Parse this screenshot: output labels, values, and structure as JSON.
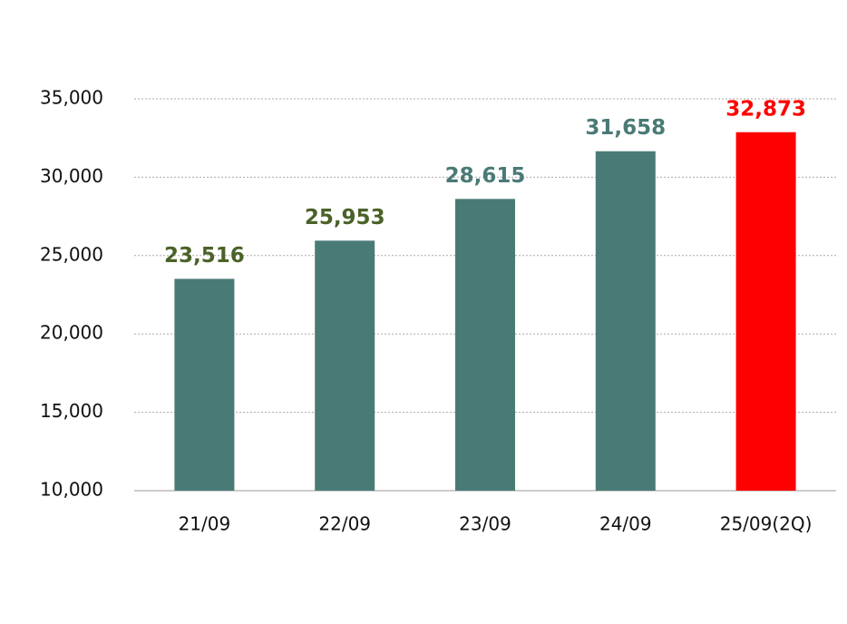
{
  "chart_data": {
    "type": "bar",
    "categories": [
      "21/09",
      "22/09",
      "23/09",
      "24/09",
      "25/09(2Q)"
    ],
    "values": [
      23516,
      25953,
      28615,
      31658,
      32873
    ],
    "value_labels": [
      "23,516",
      "25,953",
      "28,615",
      "31,658",
      "32,873"
    ],
    "colors": [
      "#4a7a76",
      "#4a7a76",
      "#4a7a76",
      "#4a7a76",
      "#ff0000"
    ],
    "value_label_colors": [
      "#4a6228",
      "#4a6228",
      "#4a7a76",
      "#4a7a76",
      "#ff0000"
    ],
    "ylim": [
      10000,
      35000
    ],
    "yticks": [
      {
        "value": 10000,
        "label": "10,000"
      },
      {
        "value": 15000,
        "label": "15,000"
      },
      {
        "value": 20000,
        "label": "20,000"
      },
      {
        "value": 25000,
        "label": "25,000"
      },
      {
        "value": 30000,
        "label": "30,000"
      },
      {
        "value": 35000,
        "label": "35,000"
      }
    ],
    "grid": true
  }
}
